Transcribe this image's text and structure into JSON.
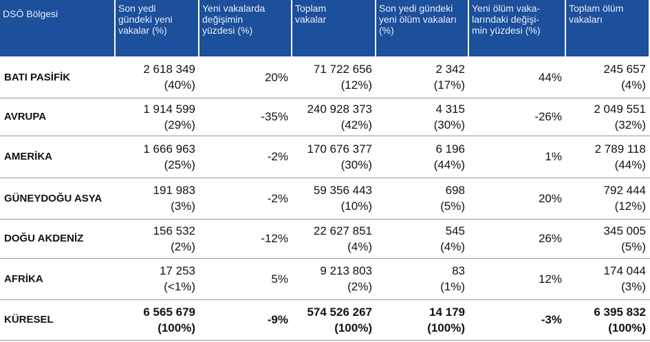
{
  "table": {
    "header": [
      [
        "DSÖ Bölgesi"
      ],
      [
        "Son yedi",
        "gündeki yeni",
        "vakalar (%)"
      ],
      [
        "Yeni vakalarda",
        "değişimin",
        "yüzdesi (%)"
      ],
      [
        "Toplam",
        "vakalar"
      ],
      [
        "Son yedi gündeki",
        "yeni ölüm vakaları",
        "(%)"
      ],
      [
        "Yeni ölüm vaka-",
        "larındaki değişi-",
        "min yüzdesi (%)"
      ],
      [
        "Toplam ölüm",
        "vakaları"
      ]
    ],
    "rows": [
      [
        [
          "BATI PASİFİK"
        ],
        [
          "2 618 349",
          "(40%)"
        ],
        [
          "20%"
        ],
        [
          "71 722 656",
          "(12%)"
        ],
        [
          "2 342",
          "(17%)"
        ],
        [
          "44%"
        ],
        [
          "245 657",
          "(4%)"
        ]
      ],
      [
        [
          "AVRUPA"
        ],
        [
          "1 914 599",
          "(29%)"
        ],
        [
          "-35%"
        ],
        [
          "240 928 373",
          "(42%)"
        ],
        [
          "4 315",
          "(30%)"
        ],
        [
          "-26%"
        ],
        [
          "2 049 551",
          "(32%)"
        ]
      ],
      [
        [
          "AMERİKA"
        ],
        [
          "1 666 963",
          "(25%)"
        ],
        [
          "-2%"
        ],
        [
          "170 676 377",
          "(30%)"
        ],
        [
          "6 196",
          "(44%)"
        ],
        [
          "1%"
        ],
        [
          "2 789 118",
          "(44%)"
        ]
      ],
      [
        [
          "GÜNEYDOĞU ASYA"
        ],
        [
          "191 983",
          "(3%)"
        ],
        [
          "-2%"
        ],
        [
          "59 356 443",
          "(10%)"
        ],
        [
          "698",
          "(5%)"
        ],
        [
          "20%"
        ],
        [
          "792 444",
          "(12%)"
        ]
      ],
      [
        [
          "DOĞU AKDENİZ"
        ],
        [
          "156 532",
          "(2%)"
        ],
        [
          "-12%"
        ],
        [
          "22 627 851",
          "(4%)"
        ],
        [
          "545",
          "(4%)"
        ],
        [
          "26%"
        ],
        [
          "345 005",
          "(5%)"
        ]
      ],
      [
        [
          "AFRİKA"
        ],
        [
          "17 253",
          "(<1%)"
        ],
        [
          "5%"
        ],
        [
          "9 213 803",
          "(2%)"
        ],
        [
          "83",
          "(1%)"
        ],
        [
          "12%"
        ],
        [
          "174 044",
          "(3%)"
        ]
      ],
      [
        [
          "KÜRESEL"
        ],
        [
          "6 565 679",
          "(100%)"
        ],
        [
          "-9%"
        ],
        [
          "574 526 267",
          "(100%)"
        ],
        [
          "14 179",
          "(100%)"
        ],
        [
          "-3%"
        ],
        [
          "6 395 832",
          "(100%)"
        ]
      ]
    ]
  }
}
